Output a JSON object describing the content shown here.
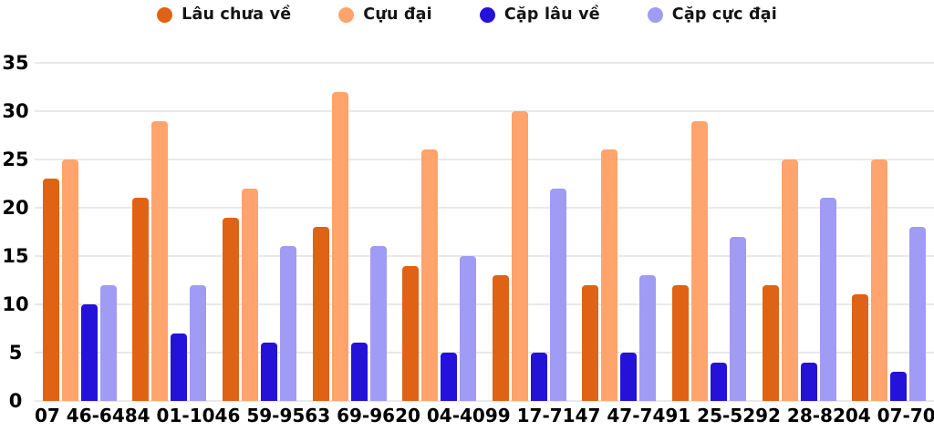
{
  "page": {
    "background": "#ffffff"
  },
  "colors": {
    "series_1": "#e06214",
    "series_2": "#ffa46c",
    "series_3": "#2412d9",
    "series_4": "#a09bf4",
    "gridline": "#e9e9e9",
    "axis_text": "#000000",
    "legend_text": "#141414"
  },
  "legend": {
    "position": "top",
    "items": [
      {
        "label": "Lâu chưa về",
        "color": "#e06214"
      },
      {
        "label": "Cựu đại",
        "color": "#ffa46c"
      },
      {
        "label": "Cặp lâu về",
        "color": "#2412d9"
      },
      {
        "label": "Cặp cực đại",
        "color": "#a09bf4"
      }
    ]
  },
  "chart_data": {
    "type": "bar",
    "title": "",
    "xlabel": "",
    "ylabel": "",
    "grid": true,
    "legend_position": "top",
    "ylim": [
      0,
      35
    ],
    "y_ticks": [
      35,
      30,
      25,
      20,
      15,
      10,
      5,
      0
    ],
    "categories": [
      "07 46-64",
      "84 01-10",
      "46 59-95",
      "63 69-96",
      "20 04-40",
      "99 17-71",
      "47 47-74",
      "91 25-52",
      "92 28-82",
      "04 07-70"
    ],
    "series": [
      {
        "name": "Lâu chưa về",
        "color": "#e06214",
        "values": [
          23,
          21,
          19,
          18,
          14,
          13,
          12,
          12,
          12,
          11
        ]
      },
      {
        "name": "Cựu đại",
        "color": "#ffa46c",
        "values": [
          25,
          29,
          22,
          32,
          26,
          30,
          26,
          29,
          25,
          25
        ]
      },
      {
        "name": "Cặp lâu về",
        "color": "#2412d9",
        "values": [
          10,
          7,
          6,
          6,
          5,
          5,
          5,
          4,
          4,
          3
        ]
      },
      {
        "name": "Cặp cực đại",
        "color": "#a09bf4",
        "values": [
          12,
          12,
          16,
          16,
          15,
          22,
          13,
          17,
          21,
          18
        ]
      }
    ]
  }
}
